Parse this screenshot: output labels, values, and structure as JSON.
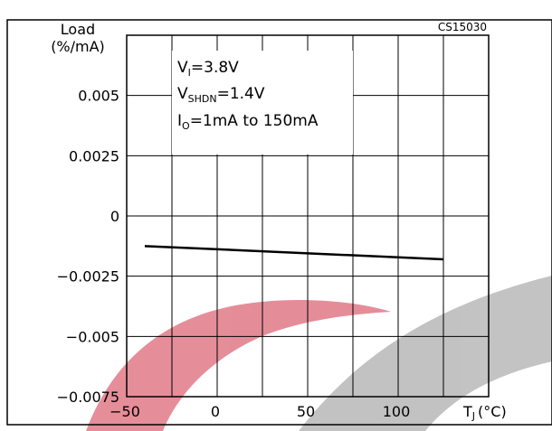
{
  "chart_data": {
    "type": "line",
    "ylabel_line1": "Load",
    "ylabel_line2": "(%/mA)",
    "xlabel": "T",
    "xlabel_sub": "J",
    "xlabel_unit": "(°C)",
    "code": "CS15030",
    "xlim": [
      -50,
      150
    ],
    "ylim": [
      -0.0075,
      0.0075
    ],
    "x_ticks": [
      -50,
      0,
      50,
      100
    ],
    "x_tick_labels": [
      "−50",
      "0",
      "50",
      "100"
    ],
    "y_ticks": [
      0.005,
      0.0025,
      0,
      -0.0025,
      -0.005,
      -0.0075
    ],
    "y_tick_labels": [
      "0.005",
      "0.0025",
      "0",
      "−0.0025",
      "−0.005",
      "−0.0075"
    ],
    "grid": true,
    "annotation": {
      "line1_main": "V",
      "line1_sub": "I",
      "line1_rest": "=3.8V",
      "line2_main": "V",
      "line2_sub": "SHDN",
      "line2_rest": "=1.4V",
      "line3_main": "I",
      "line3_sub": "O",
      "line3_rest": "=1mA  to  150mA"
    },
    "series": [
      {
        "x": [
          -40,
          125
        ],
        "y": [
          -0.00125,
          -0.0018
        ]
      }
    ],
    "watermark_colors": [
      "#e07a88",
      "#b8b8b8"
    ]
  }
}
